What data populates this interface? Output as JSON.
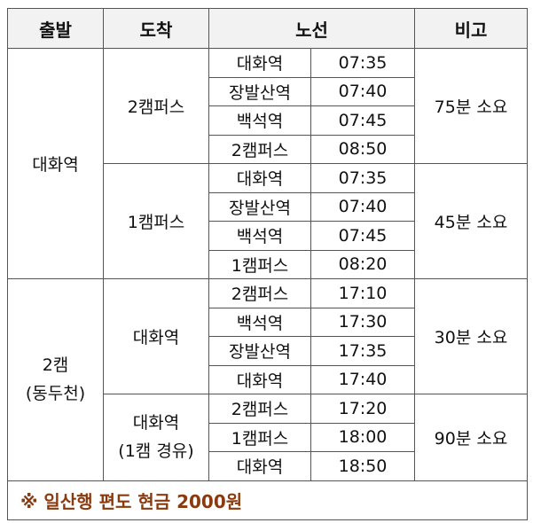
{
  "headers": {
    "departure": "출발",
    "arrival": "도착",
    "route": "노선",
    "remarks": "비고"
  },
  "groups": [
    {
      "departure": "대화역",
      "arrivals": [
        {
          "arrival": "2캠퍼스",
          "remark": "75분  소요",
          "stops": [
            {
              "stop": "대화역",
              "time": "07:35"
            },
            {
              "stop": "장발산역",
              "time": "07:40"
            },
            {
              "stop": "백석역",
              "time": "07:45"
            },
            {
              "stop": "2캠퍼스",
              "time": "08:50"
            }
          ]
        },
        {
          "arrival": "1캠퍼스",
          "remark": "45분  소요",
          "stops": [
            {
              "stop": "대화역",
              "time": "07:35"
            },
            {
              "stop": "장발산역",
              "time": "07:40"
            },
            {
              "stop": "백석역",
              "time": "07:45"
            },
            {
              "stop": "1캠퍼스",
              "time": "08:20"
            }
          ]
        }
      ]
    },
    {
      "departure_line1": "2캠",
      "departure_line2": "(동두천)",
      "arrivals": [
        {
          "arrival": "대화역",
          "remark": "30분  소요",
          "stops": [
            {
              "stop": "2캠퍼스",
              "time": "17:10"
            },
            {
              "stop": "백석역",
              "time": "17:30"
            },
            {
              "stop": "장발산역",
              "time": "17:35"
            },
            {
              "stop": "대화역",
              "time": "17:40"
            }
          ]
        },
        {
          "arrival_line1": "대화역",
          "arrival_line2": "(1캠  경유)",
          "remark": "90분  소요",
          "stops": [
            {
              "stop": "2캠퍼스",
              "time": "17:20"
            },
            {
              "stop": "1캠퍼스",
              "time": "18:00"
            },
            {
              "stop": "대화역",
              "time": "18:50"
            }
          ]
        }
      ]
    }
  ],
  "footer_note": "※  일산행  편도  현금  2000원"
}
